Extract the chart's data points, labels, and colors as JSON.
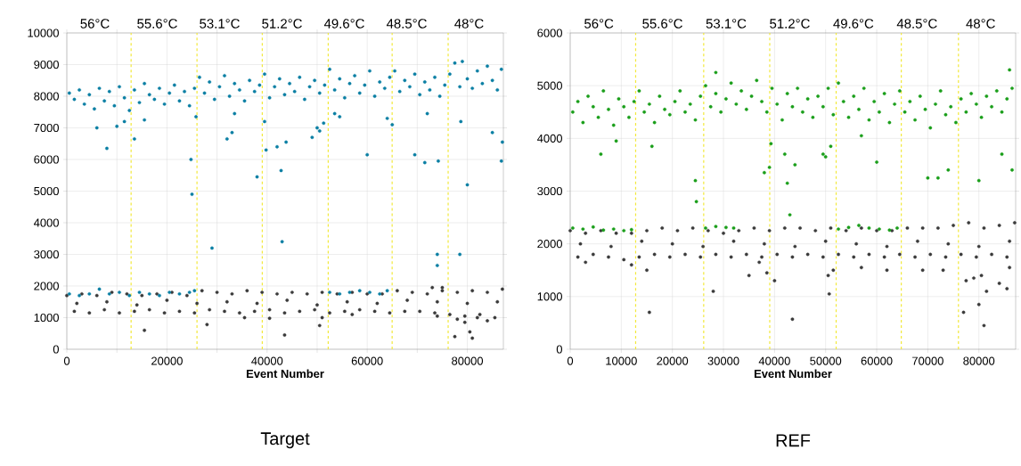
{
  "chart_data": [
    {
      "type": "scatter",
      "title": "Target",
      "xlabel": "Event Number",
      "xlim": [
        0,
        87200
      ],
      "ylim": [
        0,
        10000
      ],
      "xticks": [
        0,
        {
          "value": 10000,
          "label": null
        },
        20000,
        {
          "value": 30000,
          "label": null
        },
        40000,
        {
          "value": 50000,
          "label": null
        },
        60000,
        {
          "value": 70000,
          "label": null
        },
        80000
      ],
      "yticks": [
        0,
        1000,
        2000,
        3000,
        4000,
        5000,
        6000,
        7000,
        8000,
        9000,
        10000
      ],
      "grid": true,
      "annotations": [
        "56°C",
        "55.6°C",
        "53.1°C",
        "51.2°C",
        "49.6°C",
        "48.5°C",
        "48°C"
      ],
      "ref_lines": [
        {
          "axis": "x",
          "value": 12840,
          "color": "#f2e93b",
          "line_style": "dashed"
        },
        {
          "axis": "x",
          "value": 26000,
          "color": "#f2e93b",
          "line_style": "dashed"
        },
        {
          "axis": "x",
          "value": 39040,
          "color": "#f2e93b",
          "line_style": "dashed"
        },
        {
          "axis": "x",
          "value": 52210,
          "color": "#f2e93b",
          "line_style": "dashed"
        },
        {
          "axis": "x",
          "value": 64980,
          "color": "#f2e93b",
          "line_style": "dashed"
        },
        {
          "axis": "x",
          "value": 76170,
          "color": "#f2e93b",
          "line_style": "dashed"
        }
      ],
      "series": [
        {
          "color": "#3a3a3a",
          "x": [
            0,
            3000,
            6000,
            9000,
            12000,
            15000,
            18000,
            21000,
            24000,
            27000,
            30000,
            33000,
            36000,
            39000,
            42000,
            45000,
            48000,
            51000,
            54000,
            57000,
            60000,
            63000,
            66000,
            69000,
            72000,
            75000,
            78000,
            81000,
            84000,
            87000,
            1500,
            4500,
            7500,
            10500,
            13500,
            16500,
            19500,
            22500,
            25500,
            28500,
            31500,
            34500,
            37500,
            40500,
            43500,
            46500,
            49500,
            52500,
            55500,
            58500,
            61500,
            64500,
            67500,
            70500,
            73500,
            76500,
            79500,
            82500,
            85500,
            2000,
            8000,
            14000,
            20000,
            26000,
            32000,
            38000,
            44000,
            50000,
            56000,
            62000,
            68000,
            74000,
            80000,
            86000,
            15500,
            28000,
            35500,
            40500,
            43500,
            50500,
            51000,
            57000,
            74000,
            77500,
            78000,
            79500,
            80500,
            81000,
            82000,
            84000,
            73000,
            75000
          ],
          "values": [
            1700,
            1750,
            1700,
            1800,
            1750,
            1700,
            1750,
            1800,
            1700,
            1850,
            1800,
            1750,
            1850,
            1800,
            1750,
            1800,
            1750,
            1800,
            1750,
            1800,
            1750,
            1750,
            1850,
            1800,
            1750,
            1850,
            1800,
            1850,
            1800,
            1900,
            1200,
            1150,
            1250,
            1150,
            1200,
            1250,
            1150,
            1200,
            1150,
            1250,
            1200,
            1150,
            1200,
            1250,
            1150,
            1200,
            1250,
            1150,
            1200,
            1250,
            1200,
            1150,
            1200,
            1200,
            1150,
            1100,
            1050,
            1100,
            1000,
            1450,
            1500,
            1400,
            1550,
            1450,
            1500,
            1450,
            1550,
            1400,
            1500,
            1450,
            1550,
            1500,
            1450,
            1500,
            600,
            780,
            1000,
            980,
            450,
            750,
            1000,
            1100,
            1050,
            400,
            950,
            850,
            550,
            350,
            1000,
            900,
            1950,
            1950
          ]
        },
        {
          "color": "#0a7fa3",
          "x": [
            500,
            1500,
            2500,
            3500,
            4500,
            5500,
            6500,
            7500,
            8500,
            9500,
            10500,
            11500,
            12500,
            13500,
            14500,
            15500,
            16500,
            17500,
            18500,
            19500,
            20500,
            21500,
            22500,
            23500,
            24500,
            25500,
            26500,
            27500,
            28500,
            29500,
            30500,
            31500,
            32500,
            33500,
            34500,
            35500,
            36500,
            37500,
            38500,
            39500,
            40500,
            41500,
            42500,
            43500,
            44500,
            45500,
            46500,
            47500,
            48500,
            49500,
            50500,
            51500,
            52500,
            53500,
            54500,
            55500,
            56500,
            57500,
            58500,
            59500,
            60500,
            61500,
            62500,
            63500,
            64500,
            65500,
            66500,
            67500,
            68500,
            69500,
            70500,
            71500,
            72500,
            73500,
            74500,
            75500,
            76500,
            77500,
            78500,
            79000,
            80000,
            81000,
            82000,
            83000,
            84000,
            85000,
            86000,
            86800,
            6000,
            8000,
            10000,
            11500,
            13500,
            15500,
            24800,
            25000,
            25800,
            29000,
            32000,
            33000,
            33500,
            38000,
            39500,
            39800,
            42000,
            42800,
            43000,
            43800,
            49000,
            50000,
            50500,
            51300,
            53500,
            54500,
            60000,
            64000,
            65000,
            69500,
            71500,
            72000,
            74000,
            74000,
            74200,
            78500,
            78700,
            80000,
            85000,
            86800,
            87000,
            500,
            2500,
            4500,
            6500,
            8500,
            10500,
            12500,
            14500,
            16500,
            18500,
            20500,
            22500,
            24500,
            25500,
            52500,
            54500,
            56500,
            58500,
            60500,
            62500,
            64000
          ],
          "values": [
            8100,
            7900,
            8200,
            7750,
            8050,
            7600,
            8250,
            7850,
            8150,
            7700,
            8300,
            7950,
            7550,
            8200,
            7800,
            8400,
            8050,
            7900,
            8250,
            7750,
            8100,
            8350,
            7850,
            8150,
            7700,
            8250,
            8600,
            8100,
            8450,
            7900,
            8300,
            8650,
            8000,
            8400,
            8200,
            7850,
            8500,
            8150,
            8350,
            8700,
            7950,
            8300,
            8550,
            8050,
            8400,
            8150,
            8600,
            7900,
            8300,
            8500,
            8100,
            8350,
            8850,
            8200,
            8550,
            7950,
            8400,
            8650,
            8100,
            8350,
            8800,
            8000,
            8450,
            8250,
            8600,
            8800,
            8150,
            8500,
            8300,
            8700,
            8050,
            8450,
            8200,
            8600,
            8000,
            8350,
            8700,
            9050,
            8300,
            9100,
            8550,
            8250,
            8800,
            8400,
            8950,
            8500,
            8200,
            8850,
            7000,
            6350,
            7050,
            7200,
            6650,
            7250,
            6000,
            4900,
            7350,
            3200,
            6650,
            6850,
            7450,
            5450,
            7200,
            6300,
            6400,
            5650,
            3400,
            6550,
            6700,
            7000,
            6900,
            7150,
            7450,
            7350,
            6150,
            7300,
            7100,
            6150,
            5900,
            7450,
            3000,
            2650,
            5950,
            3000,
            7200,
            5200,
            6850,
            5950,
            6550,
            1750,
            1700,
            1750,
            1900,
            1750,
            1800,
            1700,
            1800,
            1750,
            1700,
            1800,
            1750,
            1800,
            1850,
            1800,
            1750,
            1800,
            1850,
            1800,
            1750,
            1850
          ]
        }
      ]
    },
    {
      "type": "scatter",
      "title": "REF",
      "xlabel": "Event Number",
      "xlim": [
        0,
        87200
      ],
      "ylim": [
        0,
        6000
      ],
      "xticks": [
        0,
        10000,
        20000,
        30000,
        40000,
        50000,
        60000,
        70000,
        80000
      ],
      "yticks": [
        0,
        1000,
        2000,
        3000,
        4000,
        5000,
        6000
      ],
      "annotations": [
        "56°C",
        "55.6°C",
        "53.1°C",
        "51.2°C",
        "49.6°C",
        "48.5°C",
        "48°C"
      ],
      "grid": true,
      "ref_lines": [
        {
          "axis": "x",
          "value": 12810,
          "color": "#f2e93b",
          "line_style": "dashed"
        },
        {
          "axis": "x",
          "value": 26130,
          "color": "#f2e93b",
          "line_style": "dashed"
        },
        {
          "axis": "x",
          "value": 39060,
          "color": "#f2e93b",
          "line_style": "dashed"
        },
        {
          "axis": "x",
          "value": 52060,
          "color": "#f2e93b",
          "line_style": "dashed"
        },
        {
          "axis": "x",
          "value": 64810,
          "color": "#f2e93b",
          "line_style": "dashed"
        },
        {
          "axis": "x",
          "value": 76000,
          "color": "#f2e93b",
          "line_style": "dashed"
        }
      ],
      "series": [
        {
          "color": "#3a3a3a",
          "x": [
            0,
            3000,
            6000,
            9000,
            12000,
            15000,
            18000,
            21000,
            24000,
            27000,
            30000,
            33000,
            36000,
            39000,
            42000,
            45000,
            48000,
            51000,
            54000,
            57000,
            60000,
            63000,
            66000,
            69000,
            72000,
            75000,
            78000,
            81000,
            84000,
            87000,
            1500,
            4500,
            7500,
            10500,
            13500,
            16500,
            19500,
            22500,
            25500,
            28500,
            31500,
            34500,
            37500,
            40500,
            43500,
            46500,
            49500,
            52500,
            55500,
            58500,
            61500,
            64500,
            67500,
            70500,
            73500,
            76500,
            79500,
            82500,
            85500,
            2000,
            8000,
            14000,
            20000,
            26000,
            32000,
            38000,
            44000,
            50000,
            56000,
            62000,
            68000,
            74000,
            80000,
            86000,
            3000,
            12000,
            15000,
            15500,
            28000,
            35000,
            37000,
            38500,
            40000,
            43500,
            50500,
            50700,
            51500,
            57000,
            62000,
            69000,
            73000,
            77000,
            77500,
            79000,
            80000,
            80500,
            81000,
            81500,
            84000,
            85500,
            86000
          ],
          "values": [
            2250,
            2200,
            2250,
            2200,
            2200,
            2250,
            2300,
            2250,
            2300,
            2250,
            2200,
            2250,
            2300,
            2250,
            2300,
            2300,
            2250,
            2300,
            2250,
            2300,
            2250,
            2250,
            2300,
            2300,
            2300,
            2350,
            2400,
            2300,
            2350,
            2400,
            1750,
            1800,
            1750,
            1700,
            1750,
            1800,
            1750,
            1800,
            1750,
            1800,
            1750,
            1800,
            1750,
            1800,
            1750,
            1800,
            1750,
            1800,
            1750,
            1800,
            1750,
            1800,
            1750,
            1800,
            1750,
            1800,
            1750,
            1800,
            1750,
            2000,
            1950,
            2050,
            2000,
            1950,
            2050,
            2000,
            1950,
            2050,
            2000,
            1950,
            2050,
            2000,
            1950,
            2050,
            1650,
            1600,
            1500,
            700,
            1100,
            1400,
            1650,
            1450,
            1300,
            570,
            1400,
            1050,
            1500,
            1550,
            1500,
            1500,
            1500,
            700,
            1300,
            1350,
            850,
            1400,
            450,
            1100,
            1250,
            1150,
            1550
          ]
        },
        {
          "color": "#1a9e1a",
          "x": [
            500,
            1500,
            2500,
            3500,
            4500,
            5500,
            6500,
            7500,
            8500,
            9500,
            10500,
            11500,
            12500,
            13500,
            14500,
            15500,
            16500,
            17500,
            18500,
            19500,
            20500,
            21500,
            22500,
            23500,
            24500,
            25500,
            26500,
            27500,
            28500,
            29500,
            30500,
            31500,
            32500,
            33500,
            34500,
            35500,
            36500,
            37500,
            38500,
            39500,
            40500,
            41500,
            42500,
            43500,
            44500,
            45500,
            46500,
            47500,
            48500,
            49500,
            50500,
            51500,
            52500,
            53500,
            54500,
            55500,
            56500,
            57500,
            58500,
            59500,
            60500,
            61500,
            62500,
            63500,
            64500,
            65500,
            66500,
            67500,
            68500,
            69500,
            70500,
            71500,
            72500,
            73500,
            74500,
            75500,
            76500,
            77500,
            78500,
            79500,
            80500,
            81500,
            82500,
            83500,
            84500,
            85500,
            86500,
            6000,
            9000,
            16000,
            24500,
            24700,
            28500,
            38000,
            39000,
            39300,
            42000,
            42500,
            43000,
            44000,
            49500,
            50000,
            51000,
            57000,
            60000,
            70000,
            72000,
            74000,
            80000,
            84500,
            86000,
            86500,
            500,
            2500,
            4500,
            6500,
            8500,
            10500,
            12000,
            26500,
            28500,
            30500,
            32000,
            52500,
            54500,
            56500,
            58500,
            60500,
            62500,
            64000
          ],
          "values": [
            4500,
            4700,
            4300,
            4800,
            4600,
            4400,
            4900,
            4550,
            4250,
            4750,
            4600,
            4400,
            4700,
            4900,
            4500,
            4650,
            4300,
            4800,
            4550,
            4450,
            4700,
            4900,
            4500,
            4650,
            4350,
            4800,
            5000,
            4600,
            4850,
            4500,
            4750,
            5050,
            4650,
            4900,
            4550,
            4800,
            5100,
            4700,
            4500,
            4950,
            4650,
            4350,
            4850,
            4600,
            4950,
            4500,
            4750,
            4400,
            4800,
            4600,
            4950,
            4450,
            5050,
            4700,
            4400,
            4800,
            4550,
            4950,
            4350,
            4700,
            4500,
            4850,
            4300,
            4650,
            4900,
            4500,
            4700,
            4350,
            4800,
            4550,
            4200,
            4650,
            4900,
            4450,
            4600,
            4300,
            4750,
            4500,
            4850,
            4650,
            4400,
            4800,
            4600,
            4900,
            4500,
            4750,
            4950,
            3700,
            3950,
            3850,
            3200,
            2800,
            5250,
            3350,
            3450,
            3900,
            3700,
            3150,
            2550,
            3500,
            3700,
            3650,
            3850,
            4050,
            3550,
            3250,
            3250,
            3400,
            3200,
            3700,
            5300,
            3400,
            2300,
            2280,
            2320,
            2260,
            2280,
            2250,
            2270,
            2300,
            2330,
            2310,
            2300,
            2280,
            2310,
            2350,
            2300,
            2280,
            2260,
            2300
          ]
        }
      ]
    }
  ]
}
